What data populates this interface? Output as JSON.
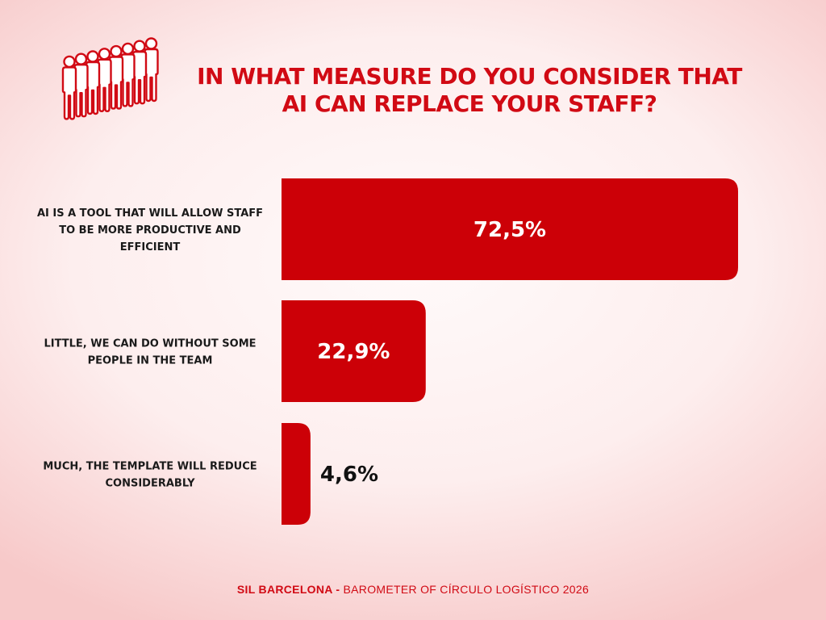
{
  "title_lines": [
    "IN WHAT MEASURE DO YOU CONSIDER THAT",
    "AI CAN REPLACE YOUR STAFF?"
  ],
  "icon": "group-of-people-icon",
  "colors": {
    "accent": "#d10a14",
    "bar": "#cc0007",
    "inside_value_text": "#ffffff",
    "outside_value_text": "#111111"
  },
  "chart_data": {
    "type": "bar",
    "orientation": "horizontal",
    "categories": [
      "AI IS A TOOL THAT WILL ALLOW STAFF TO BE MORE PRODUCTIVE AND EFFICIENT",
      "LITTLE, WE CAN DO WITHOUT SOME PEOPLE IN THE TEAM",
      "MUCH, THE TEMPLATE WILL REDUCE CONSIDERABLY"
    ],
    "category_label_lines": [
      [
        "AI IS A TOOL THAT WILL ALLOW STAFF",
        "TO BE MORE PRODUCTIVE AND",
        "EFFICIENT"
      ],
      [
        "LITTLE, WE CAN DO WITHOUT SOME",
        "PEOPLE IN THE TEAM"
      ],
      [
        "MUCH, THE TEMPLATE WILL REDUCE",
        "CONSIDERABLY"
      ]
    ],
    "values": [
      72.5,
      22.9,
      4.6
    ],
    "value_labels": [
      "72,5%",
      "22,9%",
      "4,6%"
    ],
    "unit": "%",
    "title": "IN WHAT MEASURE DO YOU CONSIDER THAT AI CAN REPLACE YOUR STAFF?",
    "xlabel": "",
    "ylabel": "",
    "grid": false,
    "legend": "none"
  },
  "footer": {
    "brand": "SIL BARCELONA -",
    "text": " BAROMETER OF CÍRCULO  LOGÍSTICO 2026"
  }
}
